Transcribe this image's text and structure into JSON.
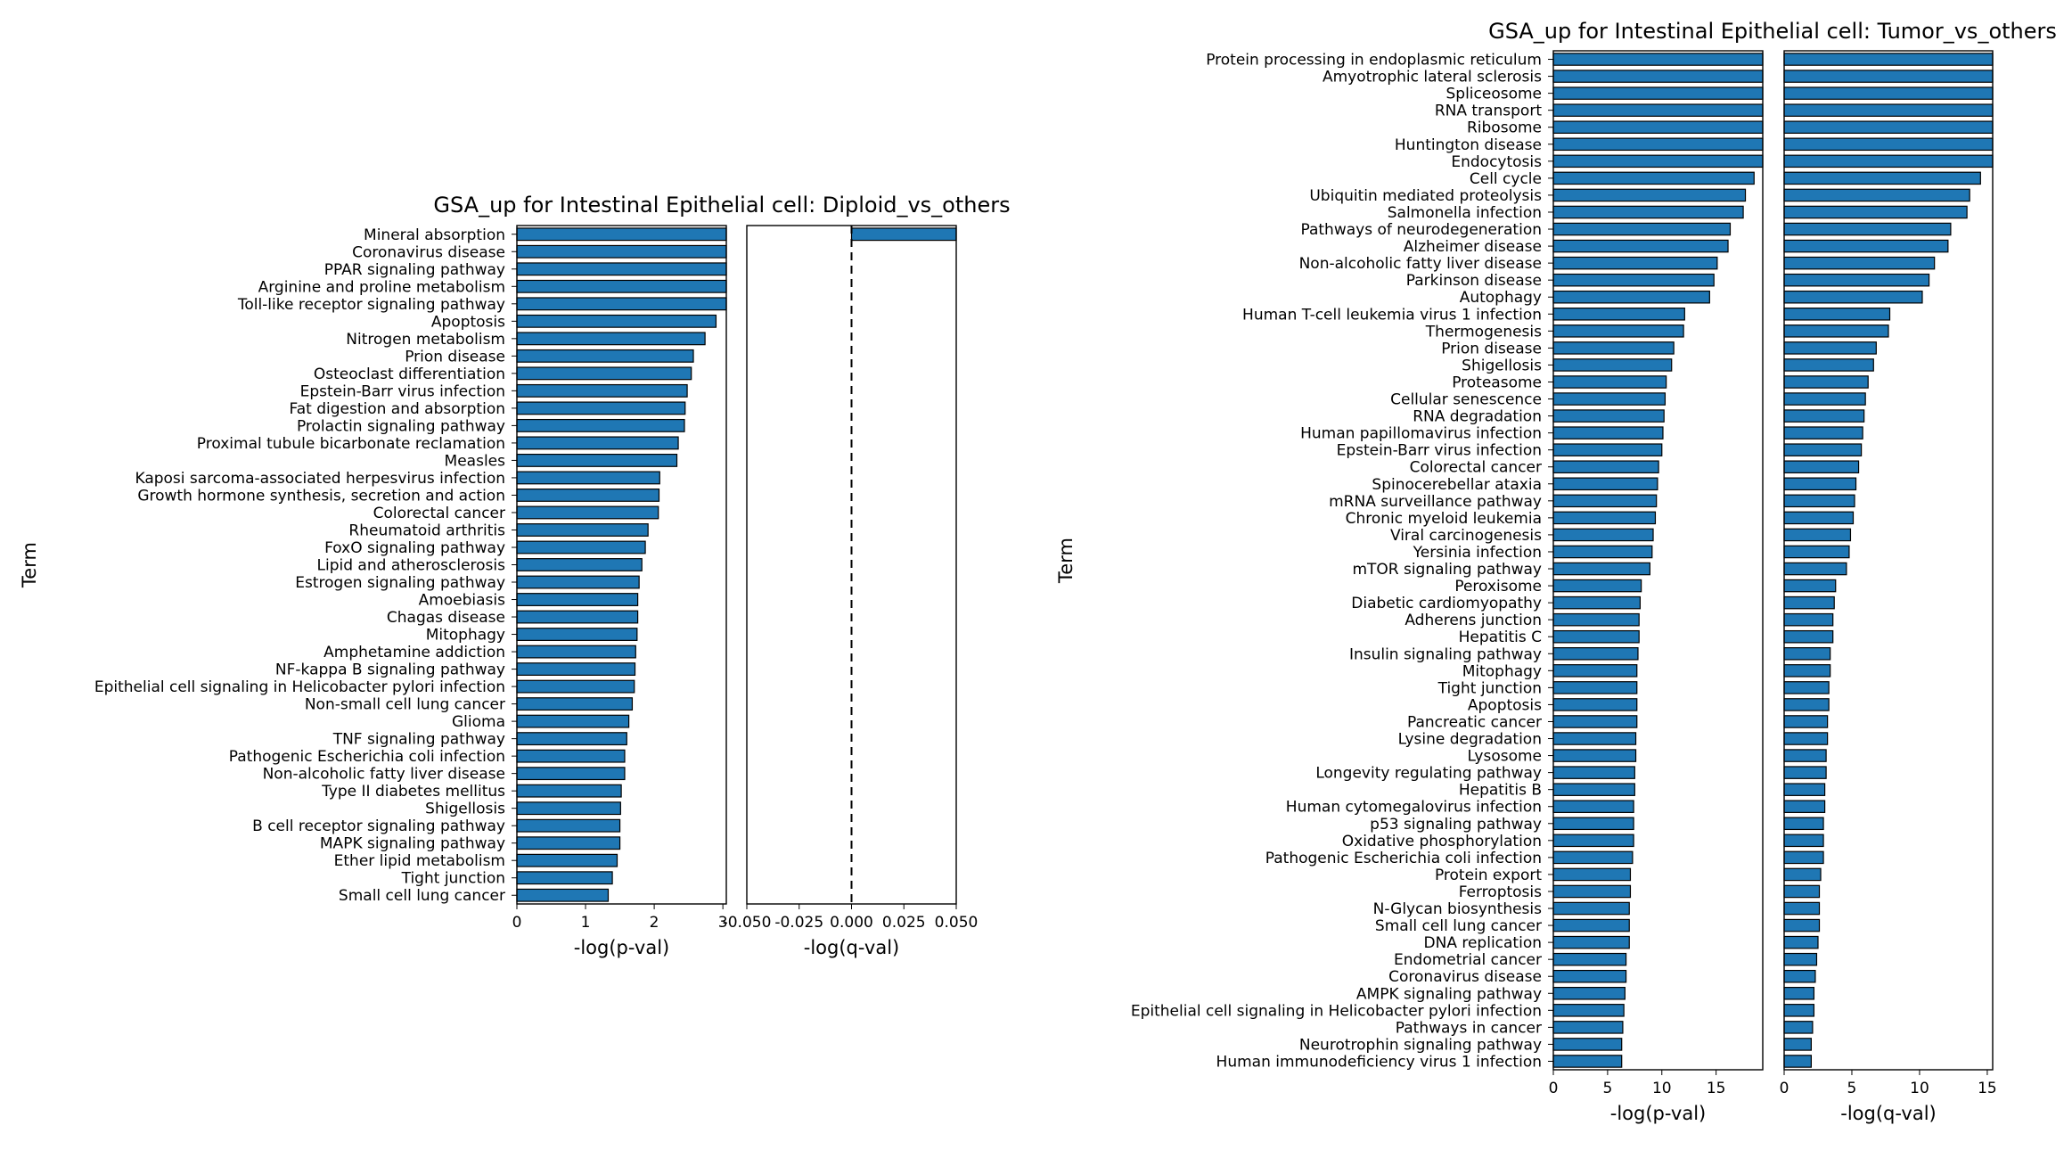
{
  "colors": {
    "bar": "#1f77b4",
    "bar_edge": "#000000",
    "axes": "#000000"
  },
  "chart_data": [
    {
      "type": "bar",
      "orientation": "horizontal",
      "title": "GSA_up for Intestinal Epithelial cell: Diploid_vs_others",
      "ylabel": "Term",
      "categories": [
        "Mineral absorption",
        "Coronavirus disease",
        "PPAR signaling pathway",
        "Arginine and proline metabolism",
        "Toll-like receptor signaling pathway",
        "Apoptosis",
        "Nitrogen metabolism",
        "Prion disease",
        "Osteoclast differentiation",
        "Epstein-Barr virus infection",
        "Fat digestion and absorption",
        "Prolactin signaling pathway",
        "Proximal tubule bicarbonate reclamation",
        "Measles",
        "Kaposi sarcoma-associated herpesvirus infection",
        "Growth hormone synthesis, secretion and action",
        "Colorectal cancer",
        "Rheumatoid arthritis",
        "FoxO signaling pathway",
        "Lipid and atherosclerosis",
        "Estrogen signaling pathway",
        "Amoebiasis",
        "Chagas disease",
        "Mitophagy",
        "Amphetamine addiction",
        "NF-kappa B signaling pathway",
        "Epithelial cell signaling in Helicobacter pylori infection",
        "Non-small cell lung cancer",
        "Glioma",
        "TNF signaling pathway",
        "Pathogenic Escherichia coli infection",
        "Non-alcoholic fatty liver disease",
        "Type II diabetes mellitus",
        "Shigellosis",
        "B cell receptor signaling pathway",
        "MAPK signaling pathway",
        "Ether lipid metabolism",
        "Tight junction",
        "Small cell lung cancer"
      ],
      "panels": [
        {
          "xlabel": "-log(p-val)",
          "xlim": [
            0,
            3.05
          ],
          "ticks": [
            0,
            1,
            2,
            3
          ],
          "tick_labels": [
            "0",
            "1",
            "2",
            "3"
          ],
          "values": [
            3.05,
            3.05,
            3.05,
            3.05,
            3.05,
            2.9,
            2.74,
            2.57,
            2.54,
            2.48,
            2.45,
            2.44,
            2.35,
            2.33,
            2.08,
            2.07,
            2.06,
            1.91,
            1.87,
            1.82,
            1.78,
            1.76,
            1.76,
            1.75,
            1.73,
            1.72,
            1.71,
            1.68,
            1.63,
            1.6,
            1.57,
            1.57,
            1.52,
            1.51,
            1.5,
            1.5,
            1.46,
            1.39,
            1.33
          ]
        },
        {
          "xlabel": "-log(q-val)",
          "xlim": [
            -0.05,
            0.05
          ],
          "ticks": [
            -0.05,
            -0.025,
            0.0,
            0.025,
            0.05
          ],
          "tick_labels": [
            "-0.050",
            "-0.025",
            "0.000",
            "0.025",
            "0.050"
          ],
          "dashed_line_at": 0.0,
          "values": [
            0.05,
            0,
            0,
            0,
            0,
            0,
            0,
            0,
            0,
            0,
            0,
            0,
            0,
            0,
            0,
            0,
            0,
            0,
            0,
            0,
            0,
            0,
            0,
            0,
            0,
            0,
            0,
            0,
            0,
            0,
            0,
            0,
            0,
            0,
            0,
            0,
            0,
            0,
            0
          ]
        }
      ]
    },
    {
      "type": "bar",
      "orientation": "horizontal",
      "title": "GSA_up for Intestinal Epithelial cell: Tumor_vs_others",
      "ylabel": "Term",
      "categories": [
        "Protein processing in endoplasmic reticulum",
        "Amyotrophic lateral sclerosis",
        "Spliceosome",
        "RNA transport",
        "Ribosome",
        "Huntington disease",
        "Endocytosis",
        "Cell cycle",
        "Ubiquitin mediated proteolysis",
        "Salmonella infection",
        "Pathways of neurodegeneration",
        "Alzheimer disease",
        "Non-alcoholic fatty liver disease",
        "Parkinson disease",
        "Autophagy",
        "Human T-cell leukemia virus 1 infection",
        "Thermogenesis",
        "Prion disease",
        "Shigellosis",
        "Proteasome",
        "Cellular senescence",
        "RNA degradation",
        "Human papillomavirus infection",
        "Epstein-Barr virus infection",
        "Colorectal cancer",
        "Spinocerebellar ataxia",
        "mRNA surveillance pathway",
        "Chronic myeloid leukemia",
        "Viral carcinogenesis",
        "Yersinia infection",
        "mTOR signaling pathway",
        "Peroxisome",
        "Diabetic cardiomyopathy",
        "Adherens junction",
        "Hepatitis C",
        "Insulin signaling pathway",
        "Mitophagy",
        "Tight junction",
        "Apoptosis",
        "Pancreatic cancer",
        "Lysine degradation",
        "Lysosome",
        "Longevity regulating pathway",
        "Hepatitis B",
        "Human cytomegalovirus infection",
        "p53 signaling pathway",
        "Oxidative phosphorylation",
        "Pathogenic Escherichia coli infection",
        "Protein export",
        "Ferroptosis",
        "N-Glycan biosynthesis",
        "Small cell lung cancer",
        "DNA replication",
        "Endometrial cancer",
        "Coronavirus disease",
        "AMPK signaling pathway",
        "Epithelial cell signaling in Helicobacter pylori infection",
        "Pathways in cancer",
        "Neurotrophin signaling pathway",
        "Human immunodeficiency virus 1 infection"
      ],
      "panels": [
        {
          "xlabel": "-log(p-val)",
          "xlim": [
            0,
            19.3
          ],
          "ticks": [
            0,
            5,
            10,
            15
          ],
          "tick_labels": [
            "0",
            "5",
            "10",
            "15"
          ],
          "values": [
            19.3,
            19.3,
            19.3,
            19.3,
            19.3,
            19.3,
            19.3,
            18.5,
            17.7,
            17.5,
            16.3,
            16.1,
            15.1,
            14.8,
            14.4,
            12.1,
            12.0,
            11.1,
            10.9,
            10.4,
            10.3,
            10.2,
            10.1,
            10.0,
            9.7,
            9.6,
            9.5,
            9.4,
            9.2,
            9.1,
            8.9,
            8.1,
            8.0,
            7.9,
            7.9,
            7.8,
            7.7,
            7.7,
            7.7,
            7.7,
            7.6,
            7.6,
            7.5,
            7.5,
            7.4,
            7.4,
            7.4,
            7.3,
            7.1,
            7.1,
            7.0,
            7.0,
            7.0,
            6.7,
            6.7,
            6.6,
            6.5,
            6.4,
            6.3,
            6.3
          ]
        },
        {
          "xlabel": "-log(q-val)",
          "xlim": [
            0,
            15.4
          ],
          "ticks": [
            0,
            5,
            10,
            15
          ],
          "tick_labels": [
            "0",
            "5",
            "10",
            "15"
          ],
          "values": [
            15.4,
            15.4,
            15.4,
            15.4,
            15.4,
            15.4,
            15.4,
            14.5,
            13.7,
            13.5,
            12.3,
            12.1,
            11.1,
            10.7,
            10.2,
            7.8,
            7.7,
            6.8,
            6.6,
            6.2,
            6.0,
            5.9,
            5.8,
            5.7,
            5.5,
            5.3,
            5.2,
            5.1,
            4.9,
            4.8,
            4.6,
            3.8,
            3.7,
            3.6,
            3.6,
            3.4,
            3.4,
            3.3,
            3.3,
            3.2,
            3.2,
            3.1,
            3.1,
            3.0,
            3.0,
            2.9,
            2.9,
            2.9,
            2.7,
            2.6,
            2.6,
            2.6,
            2.5,
            2.4,
            2.3,
            2.2,
            2.2,
            2.1,
            2.0,
            2.0
          ]
        }
      ]
    }
  ]
}
